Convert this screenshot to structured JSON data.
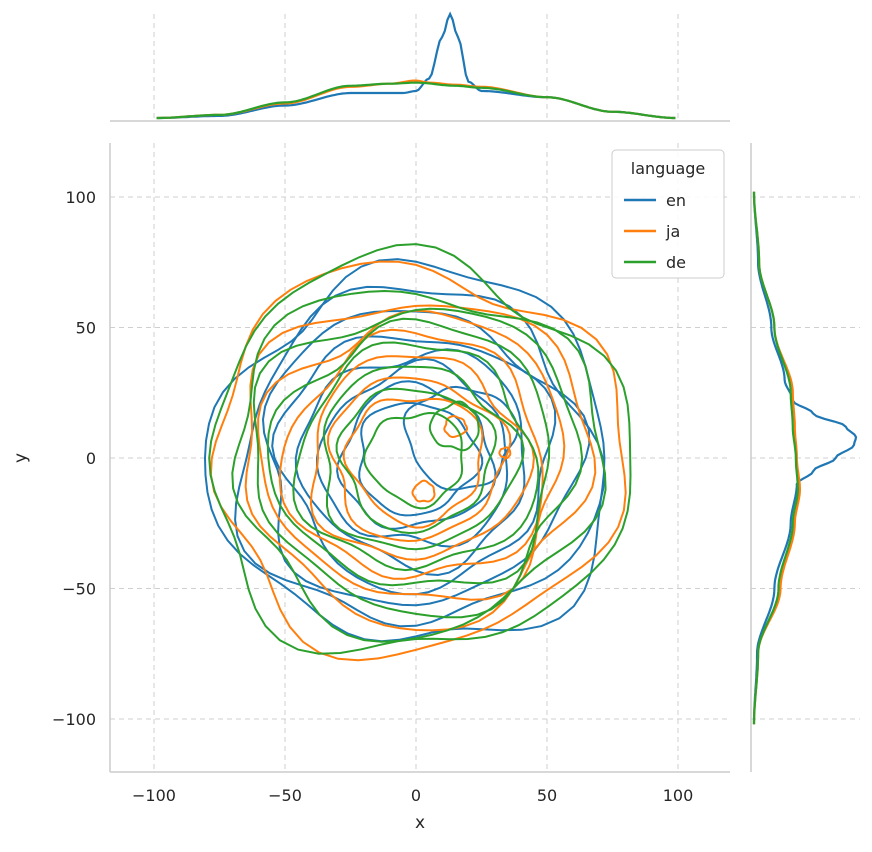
{
  "chart_data": {
    "type": "jointplot-kde",
    "xlabel": "x",
    "ylabel": "y",
    "xlim": [
      -118,
      118
    ],
    "ylim": [
      -120,
      120
    ],
    "x_ticks": [
      -100,
      -50,
      0,
      50,
      100
    ],
    "y_ticks": [
      -100,
      -50,
      0,
      50,
      100
    ],
    "x_tick_labels": [
      "−100",
      "−50",
      "0",
      "50",
      "100"
    ],
    "y_tick_labels": [
      "−100",
      "−50",
      "0",
      "50",
      "100"
    ],
    "grid": true,
    "grid_style": "dashed",
    "legend": {
      "title": "language",
      "placement": "top-right",
      "entries": [
        "en",
        "ja",
        "de"
      ]
    },
    "series": [
      {
        "name": "en",
        "color": "#1f77b4",
        "contour_centers": [
          [
            17,
            8
          ],
          [
            0,
            0
          ],
          [
            0,
            0
          ],
          [
            0,
            0
          ],
          [
            0,
            0
          ],
          [
            0,
            0
          ],
          [
            0,
            0
          ],
          [
            0,
            0
          ],
          [
            0,
            0
          ]
        ],
        "contour_radii": [
          20,
          22,
          28,
          35,
          42,
          50,
          58,
          66,
          74
        ],
        "marginal_x": [
          [
            -99,
            0.0
          ],
          [
            -75,
            0.02
          ],
          [
            -50,
            0.12
          ],
          [
            -25,
            0.24
          ],
          [
            -5,
            0.24
          ],
          [
            0,
            0.26
          ],
          [
            5,
            0.38
          ],
          [
            10,
            0.78
          ],
          [
            13,
            1.0
          ],
          [
            16,
            0.78
          ],
          [
            20,
            0.35
          ],
          [
            25,
            0.26
          ],
          [
            50,
            0.2
          ],
          [
            75,
            0.06
          ],
          [
            99,
            0.0
          ]
        ],
        "marginal_y": [
          [
            -102,
            0.0
          ],
          [
            -75,
            0.03
          ],
          [
            -50,
            0.2
          ],
          [
            -25,
            0.36
          ],
          [
            -10,
            0.42
          ],
          [
            -5,
            0.58
          ],
          [
            0,
            0.8
          ],
          [
            5,
            0.98
          ],
          [
            8,
            1.0
          ],
          [
            12,
            0.9
          ],
          [
            17,
            0.58
          ],
          [
            22,
            0.38
          ],
          [
            30,
            0.3
          ],
          [
            50,
            0.17
          ],
          [
            75,
            0.04
          ],
          [
            102,
            0.0
          ]
        ]
      },
      {
        "name": "ja",
        "color": "#ff7f0e",
        "contour_centers": [
          [
            15,
            12
          ],
          [
            3,
            -13
          ],
          [
            34,
            2
          ],
          [
            0,
            0
          ],
          [
            0,
            0
          ],
          [
            0,
            0
          ],
          [
            0,
            0
          ],
          [
            0,
            0
          ],
          [
            0,
            0
          ],
          [
            0,
            0
          ]
        ],
        "contour_radii": [
          4,
          4,
          2,
          25,
          32,
          40,
          48,
          56,
          64,
          76
        ],
        "marginal_x": [
          [
            -99,
            0.0
          ],
          [
            -75,
            0.03
          ],
          [
            -50,
            0.14
          ],
          [
            -25,
            0.3
          ],
          [
            -10,
            0.33
          ],
          [
            0,
            0.36
          ],
          [
            5,
            0.34
          ],
          [
            15,
            0.32
          ],
          [
            25,
            0.3
          ],
          [
            50,
            0.2
          ],
          [
            75,
            0.06
          ],
          [
            99,
            0.0
          ]
        ],
        "marginal_y": [
          [
            -102,
            0.0
          ],
          [
            -75,
            0.04
          ],
          [
            -50,
            0.26
          ],
          [
            -25,
            0.4
          ],
          [
            -12,
            0.45
          ],
          [
            0,
            0.42
          ],
          [
            12,
            0.4
          ],
          [
            25,
            0.38
          ],
          [
            50,
            0.2
          ],
          [
            75,
            0.05
          ],
          [
            102,
            0.0
          ]
        ]
      },
      {
        "name": "de",
        "color": "#2ca02c",
        "contour_centers": [
          [
            15,
            12
          ],
          [
            0,
            0
          ],
          [
            0,
            0
          ],
          [
            0,
            0
          ],
          [
            0,
            0
          ],
          [
            0,
            0
          ],
          [
            0,
            0
          ],
          [
            0,
            0
          ],
          [
            0,
            0
          ]
        ],
        "contour_radii": [
          9,
          18,
          28,
          36,
          44,
          52,
          60,
          68,
          78
        ],
        "marginal_x": [
          [
            -99,
            0.0
          ],
          [
            -75,
            0.03
          ],
          [
            -50,
            0.15
          ],
          [
            -25,
            0.31
          ],
          [
            -10,
            0.33
          ],
          [
            0,
            0.34
          ],
          [
            15,
            0.31
          ],
          [
            25,
            0.29
          ],
          [
            50,
            0.2
          ],
          [
            75,
            0.06
          ],
          [
            99,
            0.0
          ]
        ],
        "marginal_y": [
          [
            -102,
            0.0
          ],
          [
            -75,
            0.04
          ],
          [
            -50,
            0.24
          ],
          [
            -25,
            0.38
          ],
          [
            -12,
            0.43
          ],
          [
            0,
            0.41
          ],
          [
            12,
            0.38
          ],
          [
            25,
            0.36
          ],
          [
            50,
            0.2
          ],
          [
            75,
            0.05
          ],
          [
            102,
            0.0
          ]
        ]
      }
    ]
  }
}
